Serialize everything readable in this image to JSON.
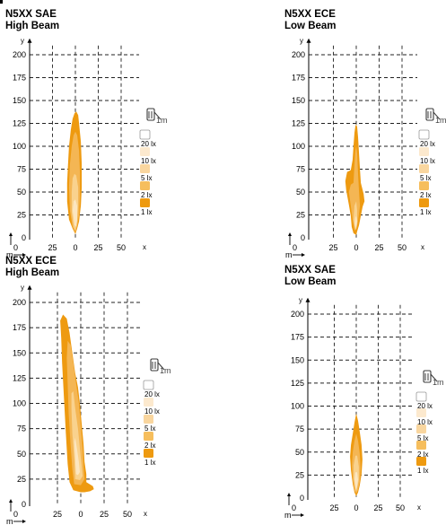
{
  "colors": {
    "beam_outer": "#EE9A10",
    "beam_mid": "#F4B654",
    "beam_inner": "#F9D28E",
    "beam_core": "#FCE6C0",
    "legend_20": "#FFFFFF",
    "legend_10": "#FCE9CE",
    "legend_5": "#F9D69F",
    "legend_2": "#F6BE5D",
    "legend_1": "#EE9A10",
    "grid": "#222222",
    "axis": "#000000",
    "icon": "#3A3A3A"
  },
  "legend": {
    "icon": "headlight-at-1m-icon",
    "icon_text": "1m",
    "items": [
      "20 lx",
      "10 lx",
      "5 lx",
      "2 lx",
      "1 lx"
    ]
  },
  "axes": {
    "x_ticks": [
      "25",
      "0",
      "25",
      "50"
    ],
    "x_label": "x",
    "y_ticks": [
      "200",
      "175",
      "150",
      "125",
      "100",
      "75",
      "50",
      "25",
      "0"
    ],
    "y_label": "y",
    "m_label": "m"
  },
  "chart_data": [
    {
      "type": "area",
      "title": "N5XX SAE\nHigh Beam",
      "x_unit": "m",
      "y_unit": "m",
      "xlim": [
        -45,
        65
      ],
      "ylim": [
        0,
        210
      ],
      "grid": true,
      "legend_position": "right",
      "contours": [
        {
          "lux": 1,
          "points": [
            [
              -3,
              10
            ],
            [
              -7,
              20
            ],
            [
              -9,
              40
            ],
            [
              -9,
              60
            ],
            [
              -8,
              80
            ],
            [
              -7,
              100
            ],
            [
              -5,
              118
            ],
            [
              -3,
              130
            ],
            [
              -1,
              136
            ],
            [
              1,
              138
            ],
            [
              3,
              134
            ],
            [
              4,
              125
            ],
            [
              6,
              105
            ],
            [
              7,
              80
            ],
            [
              7,
              55
            ],
            [
              6,
              35
            ],
            [
              4,
              18
            ],
            [
              2,
              10
            ],
            [
              0,
              4
            ]
          ]
        },
        {
          "lux": 2,
          "points": [
            [
              -3,
              12
            ],
            [
              -6,
              30
            ],
            [
              -7,
              55
            ],
            [
              -6,
              80
            ],
            [
              -4,
              100
            ],
            [
              -2,
              112
            ],
            [
              0,
              116
            ],
            [
              2,
              112
            ],
            [
              4,
              95
            ],
            [
              5,
              70
            ],
            [
              5,
              45
            ],
            [
              4,
              25
            ],
            [
              2,
              13
            ],
            [
              0,
              6
            ]
          ]
        },
        {
          "lux": 5,
          "points": [
            [
              -2,
              12
            ],
            [
              -4,
              28
            ],
            [
              -4,
              50
            ],
            [
              -3,
              65
            ],
            [
              -1,
              70
            ],
            [
              1,
              68
            ],
            [
              3,
              55
            ],
            [
              3,
              35
            ],
            [
              2,
              18
            ],
            [
              0,
              8
            ]
          ]
        },
        {
          "lux": 10,
          "points": [
            [
              -1,
              14
            ],
            [
              -3,
              30
            ],
            [
              -2,
              40
            ],
            [
              0,
              42
            ],
            [
              2,
              35
            ],
            [
              2,
              20
            ],
            [
              1,
              12
            ]
          ]
        }
      ]
    },
    {
      "type": "area",
      "title": "N5XX ECE\nLow Beam",
      "x_unit": "m",
      "y_unit": "m",
      "xlim": [
        -45,
        65
      ],
      "ylim": [
        0,
        210
      ],
      "grid": true,
      "legend_position": "right",
      "contours": [
        {
          "lux": 1,
          "points": [
            [
              -3,
              5
            ],
            [
              -5,
              12
            ],
            [
              -6,
              24
            ],
            [
              -8,
              36
            ],
            [
              -11,
              52
            ],
            [
              -12,
              62
            ],
            [
              -10,
              72
            ],
            [
              -6,
              74
            ],
            [
              -4,
              85
            ],
            [
              -3,
              100
            ],
            [
              -2,
              115
            ],
            [
              -1,
              122
            ],
            [
              0,
              124
            ],
            [
              1,
              121
            ],
            [
              2,
              110
            ],
            [
              3,
              92
            ],
            [
              4,
              75
            ],
            [
              5,
              60
            ],
            [
              8,
              48
            ],
            [
              9,
              40
            ],
            [
              7,
              34
            ],
            [
              5,
              24
            ],
            [
              3,
              14
            ],
            [
              1,
              7
            ],
            [
              0,
              3
            ]
          ]
        },
        {
          "lux": 2,
          "points": [
            [
              -2,
              8
            ],
            [
              -4,
              20
            ],
            [
              -6,
              35
            ],
            [
              -8,
              50
            ],
            [
              -6,
              58
            ],
            [
              -3,
              60
            ],
            [
              -2,
              80
            ],
            [
              -1,
              95
            ],
            [
              0,
              100
            ],
            [
              1,
              92
            ],
            [
              2,
              70
            ],
            [
              3,
              50
            ],
            [
              4,
              35
            ],
            [
              2,
              18
            ],
            [
              0,
              9
            ]
          ]
        },
        {
          "lux": 5,
          "points": [
            [
              -1,
              9
            ],
            [
              -3,
              20
            ],
            [
              -2,
              35
            ],
            [
              0,
              40
            ],
            [
              1,
              30
            ],
            [
              1,
              15
            ],
            [
              0,
              10
            ]
          ]
        },
        {
          "lux": 10,
          "points": [
            [
              -1,
              10
            ],
            [
              -2,
              16
            ],
            [
              -1,
              22
            ],
            [
              0,
              24
            ],
            [
              1,
              18
            ],
            [
              0,
              12
            ]
          ]
        }
      ]
    },
    {
      "type": "area",
      "title": "N5XX ECE\nHigh Beam",
      "x_unit": "m",
      "y_unit": "m",
      "xlim": [
        -45,
        65
      ],
      "ylim": [
        0,
        210
      ],
      "grid": true,
      "legend_position": "right",
      "contours": [
        {
          "lux": 1,
          "points": [
            [
              -8,
              14
            ],
            [
              -12,
              22
            ],
            [
              -14,
              40
            ],
            [
              -16,
              70
            ],
            [
              -18,
              105
            ],
            [
              -20,
              140
            ],
            [
              -21,
              165
            ],
            [
              -22,
              182
            ],
            [
              -19,
              188
            ],
            [
              -15,
              184
            ],
            [
              -12,
              170
            ],
            [
              -9,
              150
            ],
            [
              -6,
              130
            ],
            [
              -3,
              116
            ],
            [
              -1,
              100
            ],
            [
              1,
              80
            ],
            [
              3,
              60
            ],
            [
              4,
              42
            ],
            [
              6,
              30
            ],
            [
              6,
              22
            ],
            [
              13,
              18
            ],
            [
              14,
              15
            ],
            [
              10,
              13
            ],
            [
              4,
              12
            ],
            [
              0,
              12
            ]
          ]
        },
        {
          "lux": 2,
          "points": [
            [
              -7,
              20
            ],
            [
              -9,
              35
            ],
            [
              -11,
              60
            ],
            [
              -13,
              90
            ],
            [
              -14,
              120
            ],
            [
              -15,
              145
            ],
            [
              -14,
              162
            ],
            [
              -11,
              158
            ],
            [
              -8,
              140
            ],
            [
              -5,
              120
            ],
            [
              -2,
              100
            ],
            [
              0,
              78
            ],
            [
              2,
              55
            ],
            [
              3,
              38
            ],
            [
              4,
              25
            ],
            [
              0,
              19
            ]
          ]
        },
        {
          "lux": 5,
          "points": [
            [
              -6,
              25
            ],
            [
              -7,
              45
            ],
            [
              -9,
              70
            ],
            [
              -10,
              95
            ],
            [
              -10,
              110
            ],
            [
              -8,
              112
            ],
            [
              -6,
              95
            ],
            [
              -3,
              75
            ],
            [
              -1,
              55
            ],
            [
              1,
              38
            ],
            [
              2,
              28
            ],
            [
              -1,
              24
            ]
          ]
        },
        {
          "lux": 10,
          "points": [
            [
              -5,
              30
            ],
            [
              -6,
              45
            ],
            [
              -7,
              62
            ],
            [
              -6,
              66
            ],
            [
              -4,
              55
            ],
            [
              -2,
              42
            ],
            [
              -1,
              32
            ],
            [
              -3,
              29
            ]
          ]
        }
      ]
    },
    {
      "type": "area",
      "title": "N5XX SAE\nLow Beam",
      "x_unit": "m",
      "y_unit": "m",
      "xlim": [
        -45,
        65
      ],
      "ylim": [
        0,
        210
      ],
      "grid": true,
      "legend_position": "right",
      "contours": [
        {
          "lux": 1,
          "points": [
            [
              -2,
              6
            ],
            [
              -4,
              15
            ],
            [
              -6,
              30
            ],
            [
              -7,
              45
            ],
            [
              -6,
              58
            ],
            [
              -4,
              70
            ],
            [
              -2,
              82
            ],
            [
              0,
              92
            ],
            [
              2,
              84
            ],
            [
              4,
              72
            ],
            [
              6,
              58
            ],
            [
              7,
              42
            ],
            [
              6,
              26
            ],
            [
              4,
              14
            ],
            [
              2,
              6
            ],
            [
              0,
              2
            ]
          ]
        },
        {
          "lux": 2,
          "points": [
            [
              -2,
              8
            ],
            [
              -4,
              20
            ],
            [
              -5,
              35
            ],
            [
              -4,
              50
            ],
            [
              -2,
              62
            ],
            [
              0,
              70
            ],
            [
              2,
              62
            ],
            [
              4,
              48
            ],
            [
              5,
              32
            ],
            [
              4,
              18
            ],
            [
              2,
              9
            ],
            [
              0,
              5
            ]
          ]
        },
        {
          "lux": 5,
          "points": [
            [
              -1,
              10
            ],
            [
              -3,
              22
            ],
            [
              -3,
              36
            ],
            [
              -1,
              46
            ],
            [
              1,
              46
            ],
            [
              3,
              34
            ],
            [
              3,
              20
            ],
            [
              1,
              11
            ],
            [
              0,
              7
            ]
          ]
        },
        {
          "lux": 10,
          "points": [
            [
              -1,
              12
            ],
            [
              -2,
              20
            ],
            [
              -1,
              28
            ],
            [
              1,
              28
            ],
            [
              2,
              20
            ],
            [
              1,
              13
            ],
            [
              0,
              9
            ]
          ]
        }
      ]
    }
  ]
}
